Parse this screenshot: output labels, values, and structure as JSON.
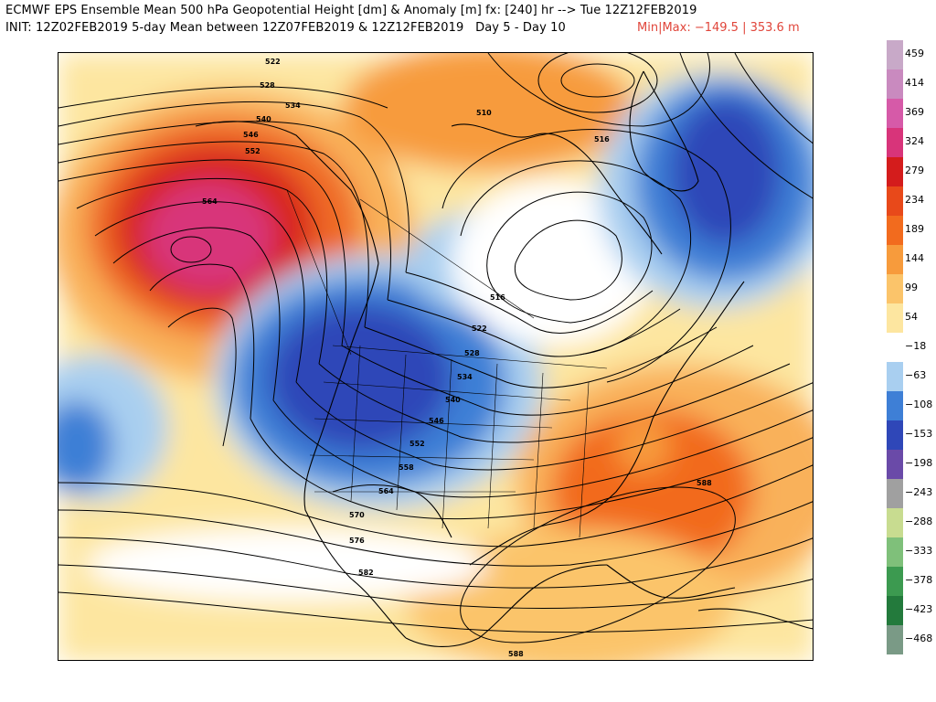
{
  "header": {
    "line1": "ECMWF EPS Ensemble Mean 500 hPa Geopotential Height [dm] & Anomaly [m] fx: [240] hr --> Tue 12Z12FEB2019",
    "line2": "INIT: 12Z02FEB2019 5-day Mean between 12Z07FEB2019 & 12Z12FEB2019   Day 5 - Day 10",
    "minmax": "Min|Max: −149.5 | 353.6 m"
  },
  "colorbar": {
    "entries": [
      {
        "label": "459",
        "color": "#c8a9c8"
      },
      {
        "label": "414",
        "color": "#c98abf"
      },
      {
        "label": "369",
        "color": "#d65aa8"
      },
      {
        "label": "324",
        "color": "#d8347a"
      },
      {
        "label": "279",
        "color": "#d41c1c"
      },
      {
        "label": "234",
        "color": "#e8491a"
      },
      {
        "label": "189",
        "color": "#f26b1e"
      },
      {
        "label": "144",
        "color": "#f79b3c"
      },
      {
        "label": "99",
        "color": "#fbc46a"
      },
      {
        "label": "54",
        "color": "#fde6a0"
      },
      {
        "label": "−18",
        "color": "#ffffff"
      },
      {
        "label": "−63",
        "color": "#a9cff0"
      },
      {
        "label": "−108",
        "color": "#3e7fd6"
      },
      {
        "label": "−153",
        "color": "#2f47b8"
      },
      {
        "label": "−198",
        "color": "#6a4aa8"
      },
      {
        "label": "−243",
        "color": "#a0a0a0"
      },
      {
        "label": "−288",
        "color": "#c8dc90"
      },
      {
        "label": "−333",
        "color": "#7fc07a"
      },
      {
        "label": "−378",
        "color": "#3c9a50"
      },
      {
        "label": "−423",
        "color": "#237a3c"
      },
      {
        "label": "−468",
        "color": "#7a9a86"
      }
    ]
  },
  "contour_labels": [
    {
      "text": "522"
    },
    {
      "text": "528"
    },
    {
      "text": "534"
    },
    {
      "text": "540"
    },
    {
      "text": "546"
    },
    {
      "text": "552"
    },
    {
      "text": "564"
    },
    {
      "text": "510"
    },
    {
      "text": "516"
    },
    {
      "text": "516"
    },
    {
      "text": "522"
    },
    {
      "text": "528"
    },
    {
      "text": "534"
    },
    {
      "text": "540"
    },
    {
      "text": "546"
    },
    {
      "text": "552"
    },
    {
      "text": "558"
    },
    {
      "text": "564"
    },
    {
      "text": "570"
    },
    {
      "text": "576"
    },
    {
      "text": "582"
    },
    {
      "text": "588"
    },
    {
      "text": "588"
    }
  ]
}
